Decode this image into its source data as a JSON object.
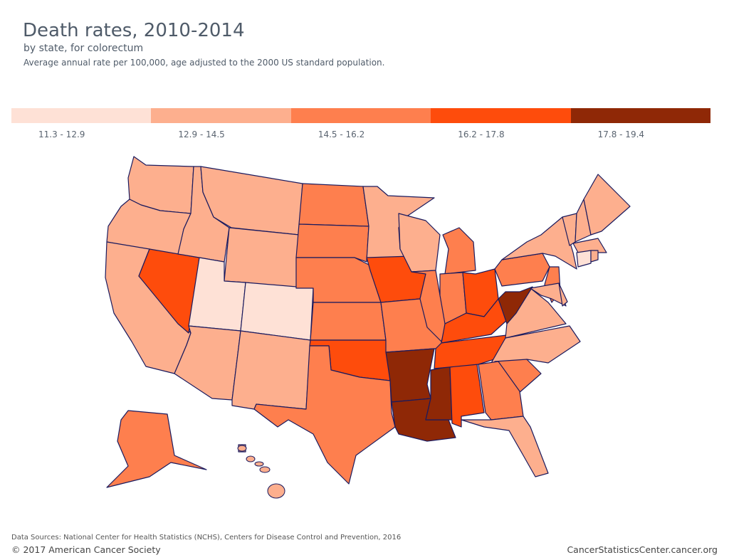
{
  "header": {
    "title": "Death rates, 2010-2014",
    "subtitle": "by state, for colorectum",
    "description": "Average annual rate per 100,000, age adjusted to the 2000 US standard population."
  },
  "legend": {
    "bins": [
      {
        "label": "11.3 - 12.9",
        "color": "#FEE1D6"
      },
      {
        "label": "12.9 - 14.5",
        "color": "#FDAF8E"
      },
      {
        "label": "14.5 - 16.2",
        "color": "#FE7F4E"
      },
      {
        "label": "16.2 - 17.8",
        "color": "#FE4C0C"
      },
      {
        "label": "17.8 - 19.4",
        "color": "#8F2806"
      }
    ]
  },
  "map": {
    "border_color": "#1a1a5e",
    "state_bin": {
      "UT": 0,
      "CO": 0,
      "CT": 0,
      "WA": 1,
      "OR": 1,
      "ID": 1,
      "MT": 1,
      "WY": 1,
      "CA": 1,
      "AZ": 1,
      "NM": 1,
      "MN": 1,
      "WI": 1,
      "NY": 1,
      "VT": 1,
      "NH": 1,
      "ME": 1,
      "MA": 1,
      "RI": 1,
      "VA": 1,
      "NC": 1,
      "FL": 1,
      "HI": 1,
      "MD": 1,
      "DE": 1,
      "ND": 2,
      "SD": 2,
      "NE": 2,
      "KS": 2,
      "TX": 2,
      "MO": 2,
      "IL": 2,
      "IN": 2,
      "MI": 2,
      "PA": 2,
      "NJ": 2,
      "GA": 2,
      "SC": 2,
      "AK": 2,
      "NV": 3,
      "IA": 3,
      "OK": 3,
      "OH": 3,
      "KY": 3,
      "TN": 3,
      "AL": 3,
      "AR": 4,
      "LA": 4,
      "MS": 4,
      "WV": 4
    }
  },
  "footer": {
    "sources": "Data Sources: National Center for Health Statistics (NCHS), Centers for Disease Control and Prevention, 2016",
    "copyright": "© 2017 American Cancer Society",
    "url": "CancerStatisticsCenter.cancer.org"
  }
}
